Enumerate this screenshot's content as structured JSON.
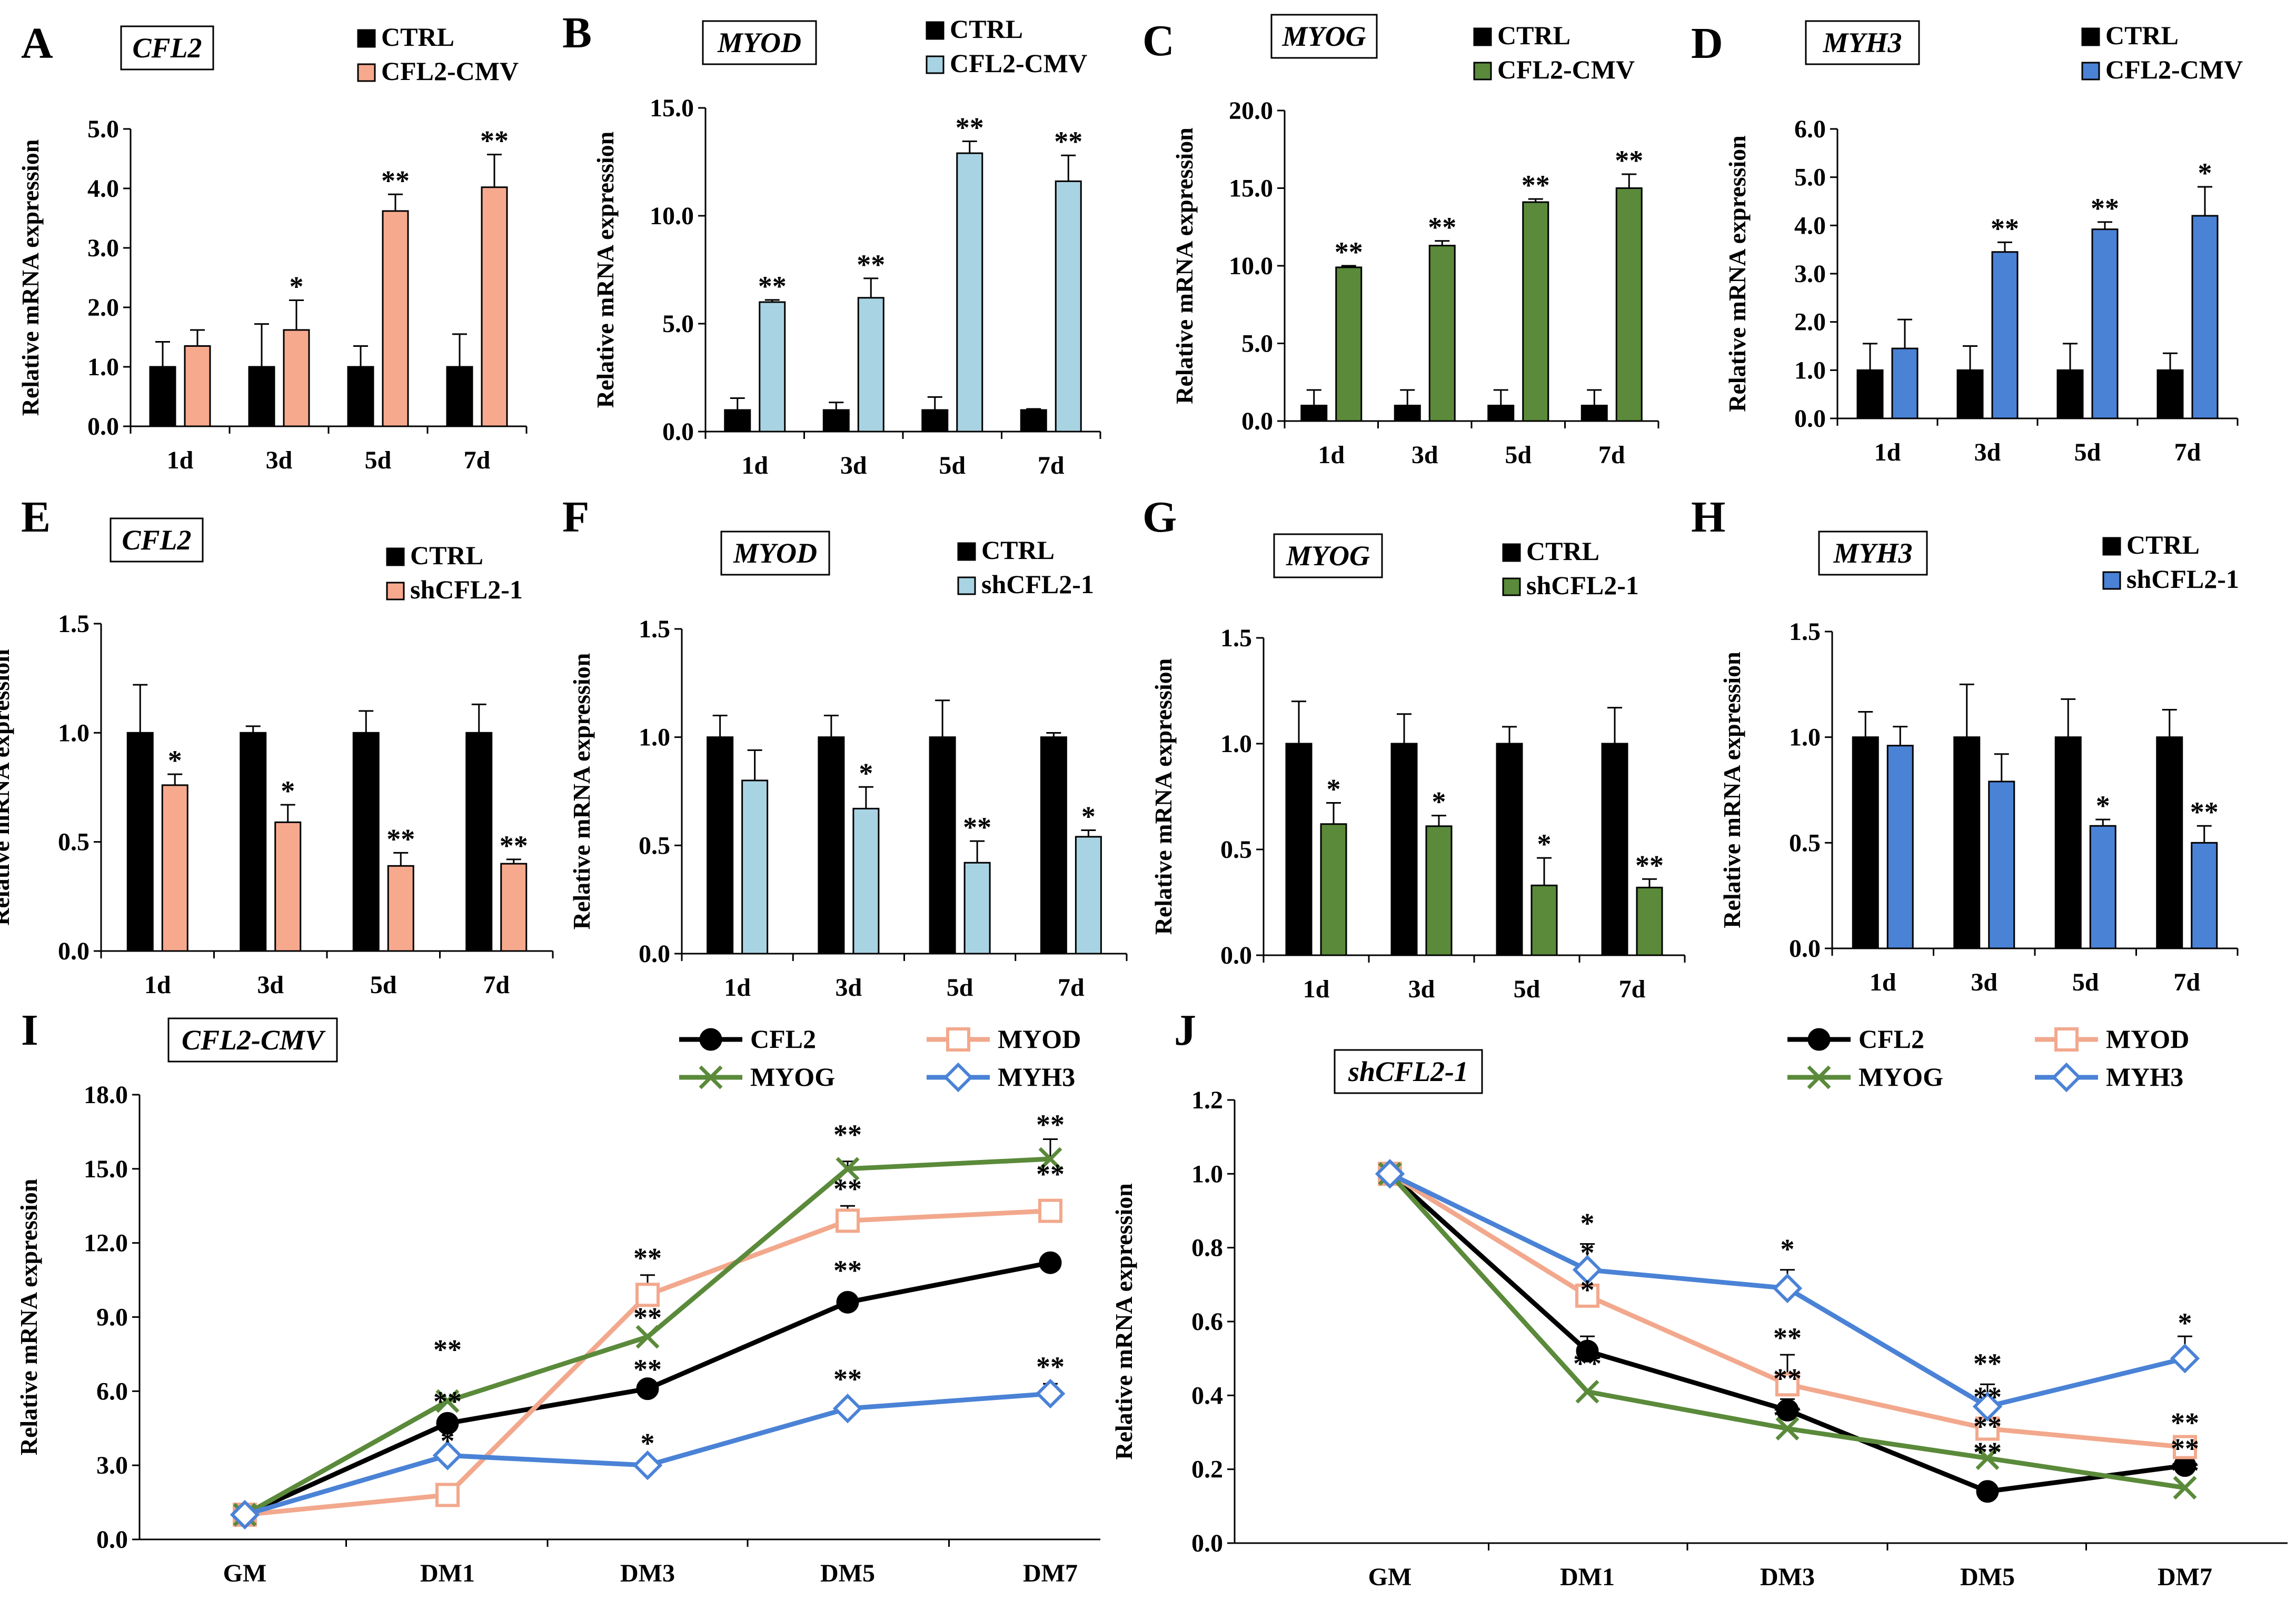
{
  "figure": {
    "colors": {
      "ctrl": "#000000",
      "cfl2_orange": "#f7a98e",
      "myod_blue": "#a8d3e3",
      "myog_green": "#5a8a3a",
      "myh3_blue": "#4a82d6",
      "line_cfl2": "#000000",
      "line_myod": "#f2a88c",
      "line_myog": "#5a8a3a",
      "line_myh3": "#4a82d6"
    },
    "ylabel": "Relative mRNA expression"
  },
  "chart_data": [
    {
      "id": "A",
      "type": "bar",
      "title": "CFL2",
      "categories": [
        "1d",
        "3d",
        "5d",
        "7d"
      ],
      "ylabel": "Relative mRNA expression",
      "ylim": [
        0,
        5
      ],
      "yticks": [
        "0.0",
        "1.0",
        "2.0",
        "3.0",
        "4.0",
        "5.0"
      ],
      "series": [
        {
          "name": "CTRL",
          "color": "#000000",
          "values": [
            1.0,
            1.0,
            1.0,
            1.0
          ],
          "errors": [
            0.42,
            0.72,
            0.35,
            0.55
          ]
        },
        {
          "name": "CFL2-CMV",
          "color": "#f7a98e",
          "values": [
            1.35,
            1.62,
            3.62,
            4.02
          ],
          "errors": [
            0.27,
            0.5,
            0.28,
            0.55
          ]
        }
      ],
      "significance": [
        "",
        "*",
        "**",
        "**"
      ]
    },
    {
      "id": "B",
      "type": "bar",
      "title": "MYOD",
      "categories": [
        "1d",
        "3d",
        "5d",
        "7d"
      ],
      "ylabel": "Relative mRNA expression",
      "ylim": [
        0,
        15
      ],
      "yticks": [
        "0.0",
        "5.0",
        "10.0",
        "15.0"
      ],
      "series": [
        {
          "name": "CTRL",
          "color": "#000000",
          "values": [
            1.0,
            1.0,
            1.0,
            1.0
          ],
          "errors": [
            0.55,
            0.35,
            0.6,
            0.05
          ]
        },
        {
          "name": "CFL2-CMV",
          "color": "#a8d3e3",
          "values": [
            6.0,
            6.2,
            12.9,
            11.6
          ],
          "errors": [
            0.1,
            0.9,
            0.55,
            1.2
          ]
        }
      ],
      "significance": [
        "**",
        "**",
        "**",
        "**"
      ]
    },
    {
      "id": "C",
      "type": "bar",
      "title": "MYOG",
      "categories": [
        "1d",
        "3d",
        "5d",
        "7d"
      ],
      "ylabel": "Relative mRNA expression",
      "ylim": [
        0,
        20
      ],
      "yticks": [
        "0.0",
        "5.0",
        "10.0",
        "15.0",
        "20.0"
      ],
      "series": [
        {
          "name": "CTRL",
          "color": "#000000",
          "values": [
            1.0,
            1.0,
            1.0,
            1.0
          ],
          "errors": [
            1.0,
            1.0,
            1.0,
            1.0
          ]
        },
        {
          "name": "CFL2-CMV",
          "color": "#5a8a3a",
          "values": [
            9.9,
            11.3,
            14.1,
            15.0
          ],
          "errors": [
            0.1,
            0.3,
            0.2,
            0.9
          ]
        }
      ],
      "significance": [
        "**",
        "**",
        "**",
        "**"
      ]
    },
    {
      "id": "D",
      "type": "bar",
      "title": "MYH3",
      "categories": [
        "1d",
        "3d",
        "5d",
        "7d"
      ],
      "ylabel": "Relative mRNA expression",
      "ylim": [
        0,
        6
      ],
      "yticks": [
        "0.0",
        "1.0",
        "2.0",
        "3.0",
        "4.0",
        "5.0",
        "6.0"
      ],
      "series": [
        {
          "name": "CTRL",
          "color": "#000000",
          "values": [
            1.0,
            1.0,
            1.0,
            1.0
          ],
          "errors": [
            0.55,
            0.5,
            0.55,
            0.35
          ]
        },
        {
          "name": "CFL2-CMV",
          "color": "#4a82d6",
          "values": [
            1.45,
            3.45,
            3.92,
            4.2
          ],
          "errors": [
            0.6,
            0.2,
            0.15,
            0.6
          ]
        }
      ],
      "significance": [
        "",
        "**",
        "**",
        "*"
      ]
    },
    {
      "id": "E",
      "type": "bar",
      "title": "CFL2",
      "categories": [
        "1d",
        "3d",
        "5d",
        "7d"
      ],
      "ylabel": "Relative mRNA expression",
      "ylim": [
        0,
        1.5
      ],
      "yticks": [
        "0.0",
        "0.5",
        "1.0",
        "1.5"
      ],
      "series": [
        {
          "name": "CTRL",
          "color": "#000000",
          "values": [
            1.0,
            1.0,
            1.0,
            1.0
          ],
          "errors": [
            0.22,
            0.03,
            0.1,
            0.13
          ]
        },
        {
          "name": "shCFL2-1",
          "color": "#f7a98e",
          "values": [
            0.76,
            0.59,
            0.39,
            0.4
          ],
          "errors": [
            0.05,
            0.08,
            0.06,
            0.02
          ]
        }
      ],
      "significance": [
        "*",
        "*",
        "**",
        "**"
      ]
    },
    {
      "id": "F",
      "type": "bar",
      "title": "MYOD",
      "categories": [
        "1d",
        "3d",
        "5d",
        "7d"
      ],
      "ylabel": "Relative mRNA expression",
      "ylim": [
        0,
        1.5
      ],
      "yticks": [
        "0.0",
        "0.5",
        "1.0",
        "1.5"
      ],
      "series": [
        {
          "name": "CTRL",
          "color": "#000000",
          "values": [
            1.0,
            1.0,
            1.0,
            1.0
          ],
          "errors": [
            0.1,
            0.1,
            0.17,
            0.02
          ]
        },
        {
          "name": "shCFL2-1",
          "color": "#a8d3e3",
          "values": [
            0.8,
            0.67,
            0.42,
            0.54
          ],
          "errors": [
            0.14,
            0.1,
            0.1,
            0.03
          ]
        }
      ],
      "significance": [
        "",
        "*",
        "**",
        "*"
      ]
    },
    {
      "id": "G",
      "type": "bar",
      "title": "MYOG",
      "categories": [
        "1d",
        "3d",
        "5d",
        "7d"
      ],
      "ylabel": "Relative mRNA expression",
      "ylim": [
        0,
        1.5
      ],
      "yticks": [
        "0.0",
        "0.5",
        "1.0",
        "1.5"
      ],
      "series": [
        {
          "name": "CTRL",
          "color": "#000000",
          "values": [
            1.0,
            1.0,
            1.0,
            1.0
          ],
          "errors": [
            0.2,
            0.14,
            0.08,
            0.17
          ]
        },
        {
          "name": "shCFL2-1",
          "color": "#5a8a3a",
          "values": [
            0.62,
            0.61,
            0.33,
            0.32
          ],
          "errors": [
            0.1,
            0.05,
            0.13,
            0.04
          ]
        }
      ],
      "significance": [
        "*",
        "*",
        "*",
        "**"
      ]
    },
    {
      "id": "H",
      "type": "bar",
      "title": "MYH3",
      "categories": [
        "1d",
        "3d",
        "5d",
        "7d"
      ],
      "ylabel": "Relative mRNA expression",
      "ylim": [
        0,
        1.5
      ],
      "yticks": [
        "0.0",
        "0.5",
        "1.0",
        "1.5"
      ],
      "series": [
        {
          "name": "CTRL",
          "color": "#000000",
          "values": [
            1.0,
            1.0,
            1.0,
            1.0
          ],
          "errors": [
            0.12,
            0.25,
            0.18,
            0.13
          ]
        },
        {
          "name": "shCFL2-1",
          "color": "#4a82d6",
          "values": [
            0.96,
            0.79,
            0.58,
            0.5
          ],
          "errors": [
            0.09,
            0.13,
            0.03,
            0.08
          ]
        }
      ],
      "significance": [
        "",
        "",
        "*",
        "**"
      ]
    },
    {
      "id": "I",
      "type": "line",
      "title": "CFL2-CMV",
      "categories": [
        "GM",
        "DM1",
        "DM3",
        "DM5",
        "DM7"
      ],
      "ylabel": "Relative mRNA expression",
      "ylim": [
        0,
        18
      ],
      "yticks": [
        "0.0",
        "3.0",
        "6.0",
        "9.0",
        "12.0",
        "15.0",
        "18.0"
      ],
      "series": [
        {
          "name": "CFL2",
          "color": "#000000",
          "marker": "circle",
          "values": [
            1.0,
            4.7,
            6.1,
            9.6,
            11.2
          ],
          "errors": [
            0,
            0.3,
            0.3,
            0.3,
            0.3
          ]
        },
        {
          "name": "MYOD",
          "color": "#f2a88c",
          "marker": "square",
          "values": [
            1.0,
            1.8,
            9.9,
            12.9,
            13.3
          ],
          "errors": [
            0,
            0,
            0.8,
            0.6,
            0.3
          ]
        },
        {
          "name": "MYOG",
          "color": "#5a8a3a",
          "marker": "x",
          "values": [
            1.0,
            5.6,
            8.2,
            15.0,
            15.4
          ],
          "errors": [
            0,
            0,
            0,
            0.3,
            0.8
          ]
        },
        {
          "name": "MYH3",
          "color": "#4a82d6",
          "marker": "diamond",
          "values": [
            1.0,
            3.4,
            3.0,
            5.3,
            5.9
          ],
          "errors": [
            0,
            0,
            0,
            0,
            0.4
          ]
        }
      ],
      "annotations": [
        {
          "text": "**",
          "cat": 1,
          "y": 7.3
        },
        {
          "text": "**",
          "cat": 1,
          "y": 5.2
        },
        {
          "text": "*",
          "cat": 1,
          "y": 3.6
        },
        {
          "text": "**",
          "cat": 2,
          "y": 11.0
        },
        {
          "text": "**",
          "cat": 2,
          "y": 8.6
        },
        {
          "text": "**",
          "cat": 2,
          "y": 6.5
        },
        {
          "text": "*",
          "cat": 2,
          "y": 3.5
        },
        {
          "text": "**",
          "cat": 3,
          "y": 16.0
        },
        {
          "text": "**",
          "cat": 3,
          "y": 13.8
        },
        {
          "text": "**",
          "cat": 3,
          "y": 10.5
        },
        {
          "text": "**",
          "cat": 3,
          "y": 6.1
        },
        {
          "text": "**",
          "cat": 4,
          "y": 16.4
        },
        {
          "text": "**",
          "cat": 4,
          "y": 14.4
        },
        {
          "text": "**",
          "cat": 4,
          "y": 6.6
        }
      ]
    },
    {
      "id": "J",
      "type": "line",
      "title": "shCFL2-1",
      "categories": [
        "GM",
        "DM1",
        "DM3",
        "DM5",
        "DM7"
      ],
      "ylabel": "Relative mRNA expression",
      "ylim": [
        0,
        1.2
      ],
      "yticks": [
        "0.0",
        "0.2",
        "0.4",
        "0.6",
        "0.8",
        "1.0",
        "1.2"
      ],
      "series": [
        {
          "name": "CFL2",
          "color": "#000000",
          "marker": "circle",
          "values": [
            1.0,
            0.52,
            0.36,
            0.14,
            0.21
          ],
          "errors": [
            0,
            0.04,
            0.03,
            0.01,
            0.02
          ]
        },
        {
          "name": "MYOD",
          "color": "#f2a88c",
          "marker": "square",
          "values": [
            1.0,
            0.67,
            0.43,
            0.31,
            0.26
          ],
          "errors": [
            0,
            0.03,
            0.08,
            0.06,
            0.02
          ]
        },
        {
          "name": "MYOG",
          "color": "#5a8a3a",
          "marker": "x",
          "values": [
            1.0,
            0.41,
            0.31,
            0.23,
            0.15
          ],
          "errors": [
            0,
            0,
            0,
            0,
            0
          ]
        },
        {
          "name": "MYH3",
          "color": "#4a82d6",
          "marker": "diamond",
          "values": [
            1.0,
            0.74,
            0.69,
            0.37,
            0.5
          ],
          "errors": [
            0,
            0.07,
            0.05,
            0.06,
            0.06
          ]
        }
      ],
      "annotations": [
        {
          "text": "*",
          "cat": 1,
          "y": 0.84
        },
        {
          "text": "*",
          "cat": 1,
          "y": 0.76
        },
        {
          "text": "*",
          "cat": 1,
          "y": 0.66
        },
        {
          "text": "**",
          "cat": 1,
          "y": 0.46
        },
        {
          "text": "*",
          "cat": 2,
          "y": 0.77
        },
        {
          "text": "**",
          "cat": 2,
          "y": 0.53
        },
        {
          "text": "**",
          "cat": 2,
          "y": 0.42
        },
        {
          "text": "**",
          "cat": 2,
          "y": 0.32
        },
        {
          "text": "**",
          "cat": 3,
          "y": 0.46
        },
        {
          "text": "**",
          "cat": 3,
          "y": 0.37
        },
        {
          "text": "**",
          "cat": 3,
          "y": 0.29
        },
        {
          "text": "**",
          "cat": 3,
          "y": 0.22
        },
        {
          "text": "*",
          "cat": 4,
          "y": 0.57
        },
        {
          "text": "**",
          "cat": 4,
          "y": 0.3
        },
        {
          "text": "**",
          "cat": 4,
          "y": 0.23
        },
        {
          "text": "**",
          "cat": 4,
          "y": 0.17
        }
      ]
    }
  ]
}
